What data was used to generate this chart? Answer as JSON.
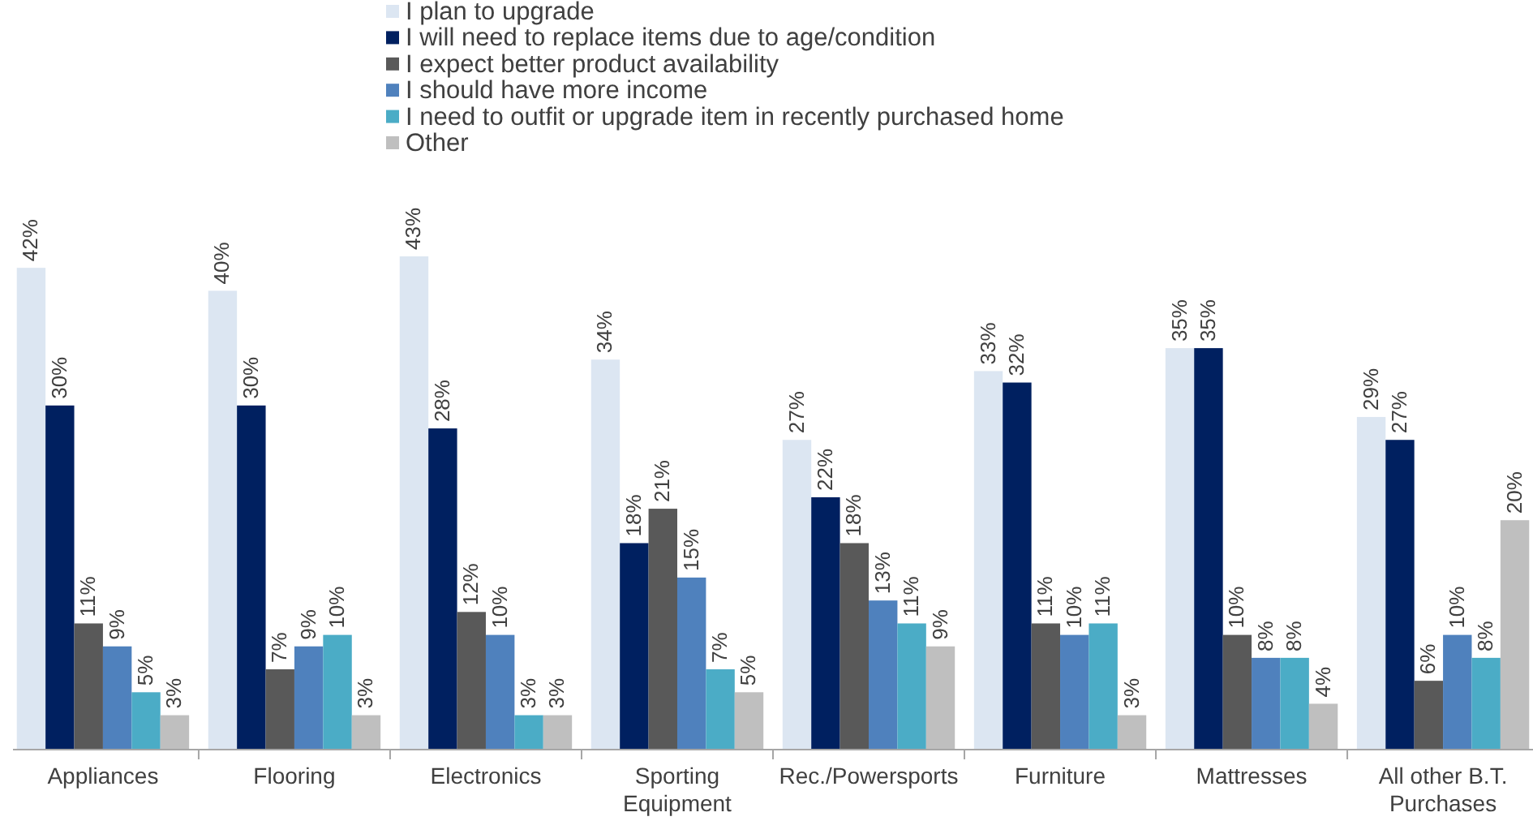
{
  "chart_data": {
    "type": "bar",
    "categories": [
      "Appliances",
      "Flooring",
      "Electronics",
      "Sporting Equipment",
      "Rec./Powersports",
      "Furniture",
      "Mattresses",
      "All other B.T. Purchases"
    ],
    "series": [
      {
        "name": "I plan to upgrade",
        "color": "#dce6f2",
        "values": [
          42,
          40,
          43,
          34,
          27,
          33,
          35,
          29
        ],
        "value_labels": [
          "42%",
          "40%",
          "43%",
          "34%",
          "27%",
          "33%",
          "35%",
          "29%"
        ]
      },
      {
        "name": "I will need to replace items due to age/condition",
        "color": "#002060",
        "values": [
          30,
          30,
          28,
          18,
          22,
          32,
          35,
          27
        ],
        "value_labels": [
          "30%",
          "30%",
          "28%",
          "18%",
          "22%",
          "32%",
          "35%",
          "27%"
        ]
      },
      {
        "name": "I expect better product availability",
        "color": "#595959",
        "values": [
          11,
          7,
          12,
          21,
          18,
          11,
          10,
          6
        ],
        "value_labels": [
          "11%",
          "7%",
          "12%",
          "21%",
          "18%",
          "11%",
          "10%",
          "6%"
        ]
      },
      {
        "name": "I should have more income",
        "color": "#4f81bd",
        "values": [
          9,
          9,
          10,
          15,
          13,
          10,
          8,
          10
        ],
        "value_labels": [
          "9%",
          "9%",
          "10%",
          "15%",
          "13%",
          "10%",
          "8%",
          "10%"
        ]
      },
      {
        "name": "I need to outfit or upgrade item in recently purchased home",
        "color": "#4bacc6",
        "values": [
          5,
          10,
          3,
          7,
          11,
          11,
          8,
          8
        ],
        "value_labels": [
          "5%",
          "10%",
          "3%",
          "7%",
          "11%",
          "11%",
          "8%",
          "8%"
        ]
      },
      {
        "name": "Other",
        "color": "#bfbfbf",
        "values": [
          3,
          3,
          3,
          5,
          9,
          3,
          4,
          20
        ],
        "value_labels": [
          "3%",
          "3%",
          "3%",
          "5%",
          "9%",
          "3%",
          "4%",
          "20%"
        ]
      }
    ],
    "legend": "top"
  }
}
